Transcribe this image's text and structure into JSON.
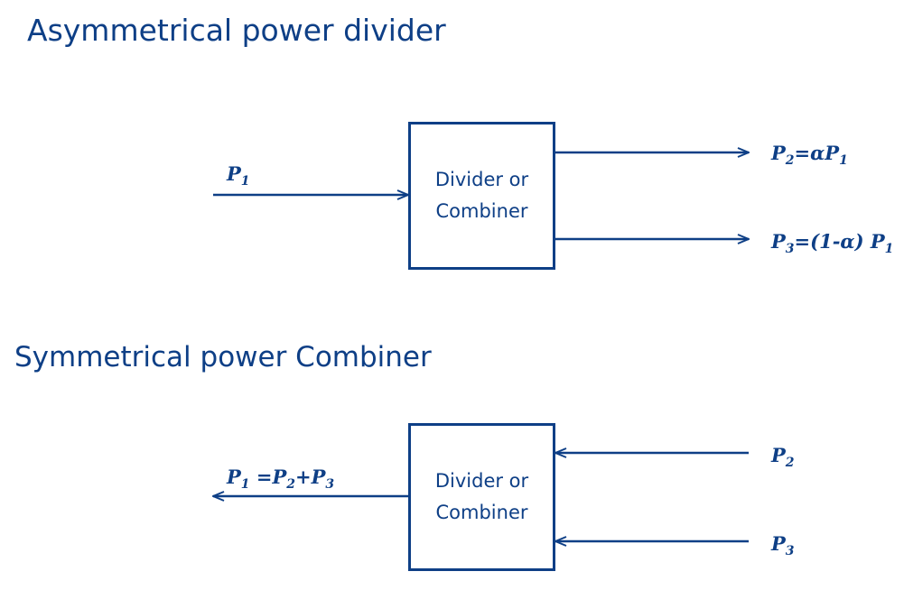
{
  "asymmetrical": {
    "title": "Asymmetrical power divider",
    "box_line1": "Divider or",
    "box_line2": "Combiner",
    "input": {
      "sym": "P",
      "sub": "1"
    },
    "output_top": {
      "sym": "P",
      "sub": "2",
      "rest": "=αP",
      "sub2": "1"
    },
    "output_bottom": {
      "sym": "P",
      "sub": "3",
      "rest": "=(1-α) P",
      "sub2": "1"
    }
  },
  "symmetrical": {
    "title": "Symmetrical power Combiner",
    "box_line1": "Divider or",
    "box_line2": "Combiner",
    "output": {
      "sym": "P",
      "sub": "1",
      "rest1": " =P",
      "sub2": "2",
      "rest2": "+P",
      "sub3": "3"
    },
    "input_top": {
      "sym": "P",
      "sub": "2"
    },
    "input_bottom": {
      "sym": "P",
      "sub": "3"
    }
  },
  "colors": {
    "primary": "#0e3f86"
  }
}
